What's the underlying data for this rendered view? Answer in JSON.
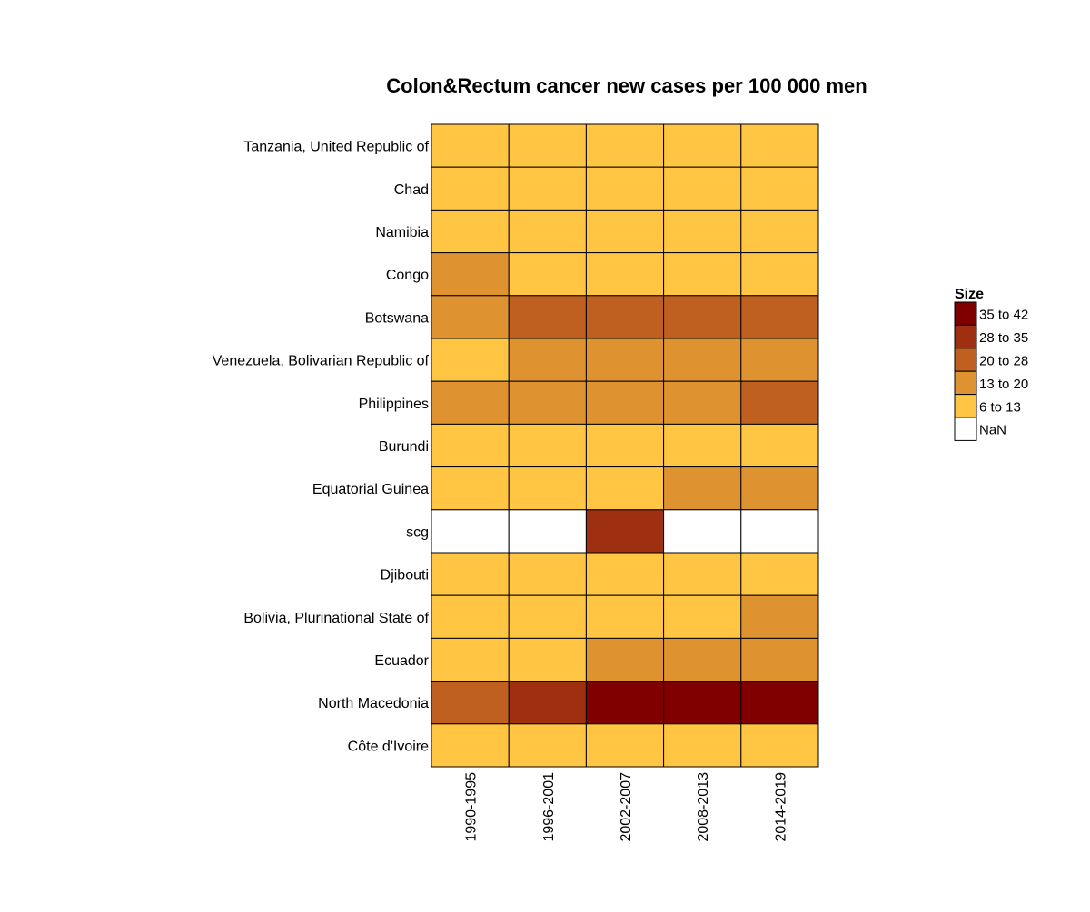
{
  "chart_data": {
    "type": "heatmap",
    "title": "Colon&Rectum cancer new cases per 100 000 men",
    "xlabel": "",
    "ylabel": "",
    "x": [
      "1990-1995",
      "1996-2001",
      "2002-2007",
      "2008-2013",
      "2014-2019"
    ],
    "y": [
      "Tanzania, United Republic of",
      "Chad",
      "Namibia",
      "Congo",
      "Botswana",
      "Venezuela, Bolivarian Republic of",
      "Philippines",
      "Burundi",
      "Equatorial Guinea",
      "scg",
      "Djibouti",
      "Bolivia, Plurinational State of",
      "Ecuador",
      "North Macedonia",
      "Côte d'Ivoire"
    ],
    "cells": [
      [
        "6 to 13",
        "6 to 13",
        "6 to 13",
        "6 to 13",
        "6 to 13"
      ],
      [
        "6 to 13",
        "6 to 13",
        "6 to 13",
        "6 to 13",
        "6 to 13"
      ],
      [
        "6 to 13",
        "6 to 13",
        "6 to 13",
        "6 to 13",
        "6 to 13"
      ],
      [
        "13 to 20",
        "6 to 13",
        "6 to 13",
        "6 to 13",
        "6 to 13"
      ],
      [
        "13 to 20",
        "20 to 28",
        "20 to 28",
        "20 to 28",
        "20 to 28"
      ],
      [
        "6 to 13",
        "13 to 20",
        "13 to 20",
        "13 to 20",
        "13 to 20"
      ],
      [
        "13 to 20",
        "13 to 20",
        "13 to 20",
        "13 to 20",
        "20 to 28"
      ],
      [
        "6 to 13",
        "6 to 13",
        "6 to 13",
        "6 to 13",
        "6 to 13"
      ],
      [
        "6 to 13",
        "6 to 13",
        "6 to 13",
        "13 to 20",
        "13 to 20"
      ],
      [
        "NaN",
        "NaN",
        "28 to 35",
        "NaN",
        "NaN"
      ],
      [
        "6 to 13",
        "6 to 13",
        "6 to 13",
        "6 to 13",
        "6 to 13"
      ],
      [
        "6 to 13",
        "6 to 13",
        "6 to 13",
        "6 to 13",
        "13 to 20"
      ],
      [
        "6 to 13",
        "6 to 13",
        "13 to 20",
        "13 to 20",
        "13 to 20"
      ],
      [
        "20 to 28",
        "28 to 35",
        "35 to 42",
        "35 to 42",
        "35 to 42"
      ],
      [
        "6 to 13",
        "6 to 13",
        "6 to 13",
        "6 to 13",
        "6 to 13"
      ]
    ],
    "legend": {
      "title": "Size",
      "position": "right",
      "items": [
        {
          "label": "35 to 42",
          "color": "#800000"
        },
        {
          "label": "28 to 35",
          "color": "#9e2f10"
        },
        {
          "label": "20 to 28",
          "color": "#bf6020"
        },
        {
          "label": "13 to 20",
          "color": "#df9330"
        },
        {
          "label": "6 to 13",
          "color": "#ffc543"
        },
        {
          "label": "NaN",
          "color": "#ffffff"
        }
      ]
    },
    "grid": false
  }
}
